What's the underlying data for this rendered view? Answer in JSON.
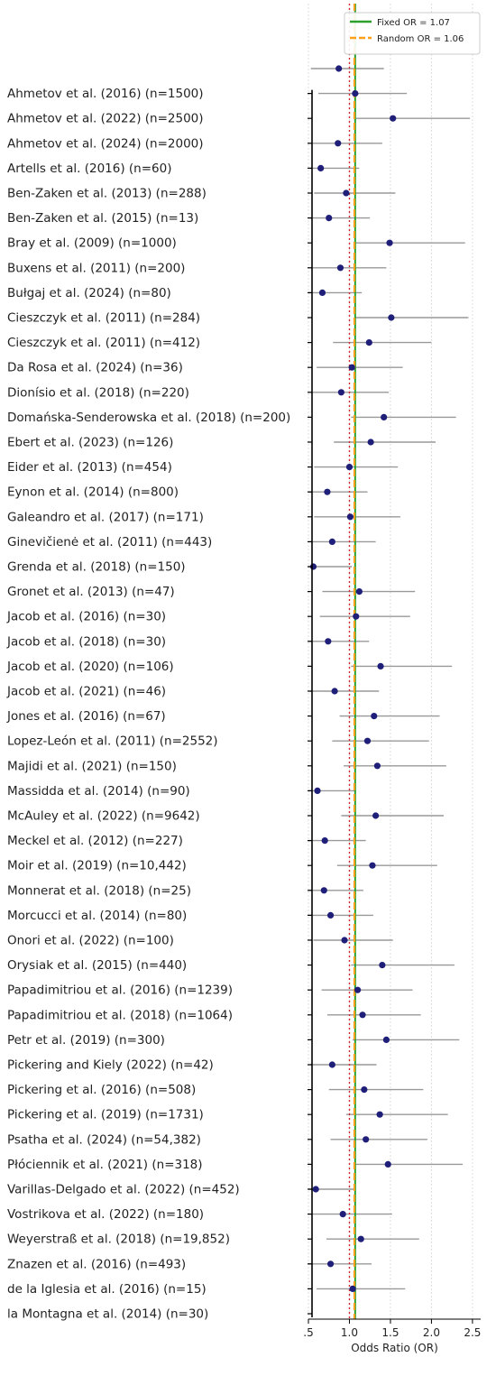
{
  "chart_data": {
    "type": "forest",
    "xlabel": "Odds Ratio (OR)",
    "xlim": [
      0.5,
      2.6
    ],
    "xticks": [
      ".5",
      "1.0",
      "1.5",
      "2.0",
      "2.5"
    ],
    "xtick_values": [
      0.5,
      1.0,
      1.5,
      2.0,
      2.5
    ],
    "grid": true,
    "legend_position": "top-right",
    "reference_lines": [
      {
        "name": "Fixed OR = 1.07",
        "value": 1.07,
        "color": "#2ca02c",
        "style": "solid"
      },
      {
        "name": "Random OR = 1.06",
        "value": 1.06,
        "color": "#ff9f1c",
        "style": "dashed"
      },
      {
        "name": "",
        "value": 1.0,
        "color": "#d62728",
        "style": "dotted"
      }
    ],
    "colors": {
      "point": "#1f1f7a",
      "ci": "#999999",
      "axis": "#000000"
    },
    "studies": [
      {
        "label": "",
        "or": 0.87,
        "ci": [
          0.53,
          1.42
        ]
      },
      {
        "label": "Ahmetov et al. (2016) (n=1500)",
        "or": 1.07,
        "ci": [
          0.62,
          1.7
        ]
      },
      {
        "label": "Ahmetov et al. (2022) (n=2500)",
        "or": 1.53,
        "ci": [
          1.08,
          2.47
        ]
      },
      {
        "label": "Ahmetov et al. (2024) (n=2000)",
        "or": 0.86,
        "ci": [
          0.55,
          1.4
        ]
      },
      {
        "label": "Artells et al. (2016) (n=60)",
        "or": 0.65,
        "ci": [
          0.52,
          1.12
        ]
      },
      {
        "label": "Ben-Zaken et al. (2013) (n=288)",
        "or": 0.96,
        "ci": [
          0.57,
          1.56
        ]
      },
      {
        "label": "Ben-Zaken et al. (2015) (n=13)",
        "or": 0.75,
        "ci": [
          0.52,
          1.25
        ]
      },
      {
        "label": "Bray et al. (2009) (n=1000)",
        "or": 1.49,
        "ci": [
          1.06,
          2.41
        ]
      },
      {
        "label": "Buxens et al. (2011) (n=200)",
        "or": 0.89,
        "ci": [
          0.55,
          1.45
        ]
      },
      {
        "label": "Bułgaj et al. (2024) (n=80)",
        "or": 0.67,
        "ci": [
          0.5,
          1.15
        ]
      },
      {
        "label": "Cieszczyk et al. (2011) (n=284)",
        "or": 1.51,
        "ci": [
          1.07,
          2.45
        ]
      },
      {
        "label": "Cieszczyk et al. (2011) (n=412)",
        "or": 1.24,
        "ci": [
          0.8,
          2.0
        ]
      },
      {
        "label": "Da Rosa et al. (2024) (n=36)",
        "or": 1.03,
        "ci": [
          0.6,
          1.65
        ]
      },
      {
        "label": "Dionísio et al. (2018) (n=220)",
        "or": 0.9,
        "ci": [
          0.54,
          1.48
        ]
      },
      {
        "label": "Domańska-Senderowska et al. (2018) (n=200)",
        "or": 1.42,
        "ci": [
          1.02,
          2.3
        ]
      },
      {
        "label": "Ebert et al. (2023) (n=126)",
        "or": 1.26,
        "ci": [
          0.81,
          2.05
        ]
      },
      {
        "label": "Eider et al. (2013) (n=454)",
        "or": 1.0,
        "ci": [
          0.57,
          1.59
        ]
      },
      {
        "label": "Eynon et al. (2014) (n=800)",
        "or": 0.73,
        "ci": [
          0.51,
          1.22
        ]
      },
      {
        "label": "Galeandro et al. (2017) (n=171)",
        "or": 1.01,
        "ci": [
          0.57,
          1.62
        ]
      },
      {
        "label": "Ginevičienė et al. (2011) (n=443)",
        "or": 0.79,
        "ci": [
          0.52,
          1.32
        ]
      },
      {
        "label": "Grenda et al. (2018) (n=150)",
        "or": 0.56,
        "ci": [
          0.5,
          1.03
        ]
      },
      {
        "label": "Gronet et al. (2013) (n=47)",
        "or": 1.12,
        "ci": [
          0.67,
          1.8
        ]
      },
      {
        "label": "Jacob et al. (2016) (n=30)",
        "or": 1.08,
        "ci": [
          0.64,
          1.74
        ]
      },
      {
        "label": "Jacob et al. (2018) (n=30)",
        "or": 0.74,
        "ci": [
          0.51,
          1.24
        ]
      },
      {
        "label": "Jacob et al. (2020) (n=106)",
        "or": 1.38,
        "ci": [
          1.02,
          2.25
        ]
      },
      {
        "label": "Jacob et al. (2021) (n=46)",
        "or": 0.82,
        "ci": [
          0.52,
          1.36
        ]
      },
      {
        "label": "Jones et al. (2016) (n=67)",
        "or": 1.3,
        "ci": [
          0.88,
          2.1
        ]
      },
      {
        "label": "Lopez-León et al. (2011) (n=2552)",
        "or": 1.22,
        "ci": [
          0.79,
          1.97
        ]
      },
      {
        "label": "Majidi et al. (2021) (n=150)",
        "or": 1.34,
        "ci": [
          0.93,
          2.18
        ]
      },
      {
        "label": "Massidda et al. (2014) (n=90)",
        "or": 0.61,
        "ci": [
          0.5,
          1.08
        ]
      },
      {
        "label": "McAuley et al. (2022) (n=9642)",
        "or": 1.32,
        "ci": [
          0.9,
          2.15
        ]
      },
      {
        "label": "Meckel et al. (2012) (n=227)",
        "or": 0.7,
        "ci": [
          0.51,
          1.2
        ]
      },
      {
        "label": "Moir et al. (2019) (n=10,442)",
        "or": 1.28,
        "ci": [
          0.85,
          2.07
        ]
      },
      {
        "label": "Monnerat et al. (2018) (n=25)",
        "or": 0.69,
        "ci": [
          0.51,
          1.17
        ]
      },
      {
        "label": "Morcucci et al. (2014) (n=80)",
        "or": 0.77,
        "ci": [
          0.51,
          1.29
        ]
      },
      {
        "label": "Onori et al. (2022) (n=100)",
        "or": 0.94,
        "ci": [
          0.56,
          1.53
        ]
      },
      {
        "label": "Orysiak et al. (2015) (n=440)",
        "or": 1.4,
        "ci": [
          1.02,
          2.28
        ]
      },
      {
        "label": "Papadimitriou et al. (2016) (n=1239)",
        "or": 1.1,
        "ci": [
          0.66,
          1.77
        ]
      },
      {
        "label": "Papadimitriou et al. (2018) (n=1064)",
        "or": 1.16,
        "ci": [
          0.73,
          1.87
        ]
      },
      {
        "label": "Petr et al. (2019) (n=300)",
        "or": 1.45,
        "ci": [
          1.04,
          2.34
        ]
      },
      {
        "label": "Pickering and Kiely (2022) (n=42)",
        "or": 0.79,
        "ci": [
          0.52,
          1.33
        ]
      },
      {
        "label": "Pickering et al. (2016) (n=508)",
        "or": 1.18,
        "ci": [
          0.75,
          1.9
        ]
      },
      {
        "label": "Pickering et al. (2019) (n=1731)",
        "or": 1.37,
        "ci": [
          0.96,
          2.2
        ]
      },
      {
        "label": "Psatha et al. (2024) (n=54,382)",
        "or": 1.2,
        "ci": [
          0.77,
          1.95
        ]
      },
      {
        "label": "Płóciennik et al. (2021) (n=318)",
        "or": 1.47,
        "ci": [
          1.05,
          2.38
        ]
      },
      {
        "label": "Varillas-Delgado et al. (2022) (n=452)",
        "or": 0.59,
        "ci": [
          0.5,
          1.08
        ]
      },
      {
        "label": "Vostrikova et al. (2022) (n=180)",
        "or": 0.92,
        "ci": [
          0.55,
          1.52
        ]
      },
      {
        "label": "Weyerstraß et al. (2018) (n=19,852)",
        "or": 1.14,
        "ci": [
          0.72,
          1.85
        ]
      },
      {
        "label": "Znazen et al. (2016) (n=493)",
        "or": 0.77,
        "ci": [
          0.5,
          1.27
        ]
      },
      {
        "label": "de la Iglesia et al. (2016) (n=15)",
        "or": 1.04,
        "ci": [
          0.6,
          1.68
        ]
      },
      {
        "label": "la Montagna et al. (2014) (n=30)",
        "or": null,
        "ci": null
      }
    ]
  }
}
